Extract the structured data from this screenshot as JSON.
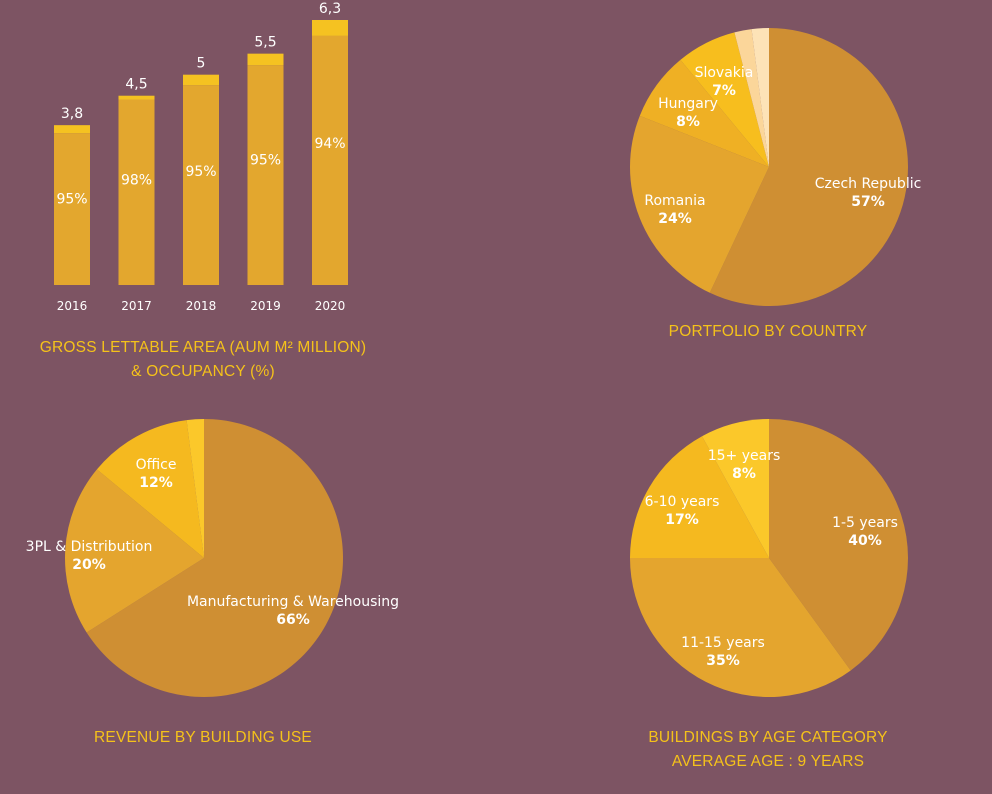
{
  "colors": {
    "background": "#7d5463",
    "caption": "#f5c21a",
    "bar_body": "#e3a72e",
    "bar_top": "#f5c221",
    "pie_primary": "#cf8f33",
    "pie_secondary": "#e4a52e",
    "pie_tertiary": "#efb024",
    "pie_quaternary": "#f7be1e",
    "pie_light1": "#fbd69a",
    "pie_light2": "#fde3b7"
  },
  "captions": {
    "gla_line1": "GROSS LETTABLE AREA (AUM M² MILLION)",
    "gla_line2": "& OCCUPANCY (%)",
    "country": "PORTFOLIO BY COUNTRY",
    "use": "REVENUE BY BUILDING USE",
    "age_line1": "BUILDINGS BY AGE CATEGORY",
    "age_line2": "AVERAGE AGE : 9 YEARS"
  },
  "chart_data": [
    {
      "type": "bar",
      "categories": [
        "2016",
        "2017",
        "2018",
        "2019",
        "2020"
      ],
      "series": [
        {
          "name": "GLA",
          "values": [
            3.8,
            4.5,
            5,
            5.5,
            6.3
          ],
          "labels": [
            "3,8",
            "4,5",
            "5",
            "5,5",
            "6,3"
          ]
        },
        {
          "name": "Occupancy",
          "values": [
            95,
            98,
            95,
            95,
            94
          ],
          "labels": [
            "95%",
            "98%",
            "95%",
            "95%",
            "94%"
          ]
        }
      ],
      "ylim": [
        0,
        6.3
      ],
      "grid": false
    },
    {
      "type": "pie",
      "slices": [
        {
          "label": "Czech Republic",
          "value": 57,
          "pct": "57%",
          "color": "#cf8f33"
        },
        {
          "label": "Romania",
          "value": 24,
          "pct": "24%",
          "color": "#e4a52e"
        },
        {
          "label": "Hungary",
          "value": 8,
          "pct": "8%",
          "color": "#efb024"
        },
        {
          "label": "Slovakia",
          "value": 7,
          "pct": "7%",
          "color": "#f7be1e"
        },
        {
          "label": "",
          "value": 2,
          "pct": "",
          "color": "#fbd69a"
        },
        {
          "label": "",
          "value": 2,
          "pct": "",
          "color": "#fde3b7"
        }
      ]
    },
    {
      "type": "pie",
      "slices": [
        {
          "label": "Manufacturing & Warehousing",
          "value": 66,
          "pct": "66%",
          "color": "#cf8f33"
        },
        {
          "label": "3PL & Distribution",
          "value": 20,
          "pct": "20%",
          "color": "#e4a52e"
        },
        {
          "label": "Office",
          "value": 12,
          "pct": "12%",
          "color": "#f5b91f"
        },
        {
          "label": "",
          "value": 2,
          "pct": "",
          "color": "#fbc82a"
        }
      ]
    },
    {
      "type": "pie",
      "slices": [
        {
          "label": "1-5 years",
          "value": 40,
          "pct": "40%",
          "color": "#cf8f33"
        },
        {
          "label": "11-15 years",
          "value": 35,
          "pct": "35%",
          "color": "#e4a52e"
        },
        {
          "label": "6-10 years",
          "value": 17,
          "pct": "17%",
          "color": "#f5b91f"
        },
        {
          "label": "15+ years",
          "value": 8,
          "pct": "8%",
          "color": "#fbc82a"
        }
      ]
    }
  ]
}
